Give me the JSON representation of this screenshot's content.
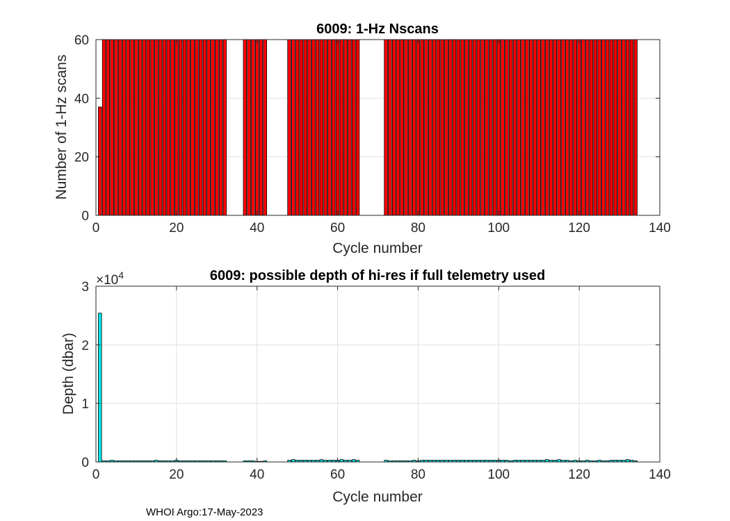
{
  "footer": "WHOI Argo:17-May-2023",
  "chart_data": [
    {
      "type": "bar",
      "title": "6009: 1-Hz Nscans",
      "xlabel": "Cycle number",
      "ylabel": "Number of 1-Hz scans",
      "xlim": [
        0,
        140
      ],
      "ylim": [
        0,
        60
      ],
      "xticks": [
        0,
        20,
        40,
        60,
        80,
        100,
        120,
        140
      ],
      "yticks": [
        0,
        20,
        40,
        60
      ],
      "grid": true,
      "bar_color": "#ff0000",
      "edge_color": "#000000",
      "x": [
        1,
        2,
        3,
        4,
        5,
        6,
        7,
        8,
        9,
        10,
        11,
        12,
        13,
        14,
        15,
        16,
        17,
        18,
        19,
        20,
        21,
        22,
        23,
        24,
        25,
        26,
        27,
        28,
        29,
        30,
        31,
        32,
        37,
        38,
        39,
        40,
        41,
        42,
        48,
        49,
        50,
        51,
        52,
        53,
        54,
        55,
        56,
        57,
        58,
        59,
        60,
        61,
        62,
        63,
        64,
        65,
        72,
        73,
        74,
        75,
        76,
        77,
        78,
        79,
        80,
        81,
        82,
        83,
        84,
        85,
        86,
        87,
        88,
        89,
        90,
        91,
        92,
        93,
        94,
        95,
        96,
        97,
        98,
        99,
        100,
        101,
        102,
        103,
        104,
        105,
        106,
        107,
        108,
        109,
        110,
        111,
        112,
        113,
        114,
        115,
        116,
        117,
        118,
        119,
        120,
        121,
        122,
        123,
        124,
        125,
        126,
        127,
        128,
        129,
        130,
        131,
        132,
        133,
        134
      ],
      "values": [
        37,
        60,
        60,
        60,
        60,
        60,
        60,
        60,
        60,
        60,
        60,
        60,
        60,
        60,
        60,
        60,
        60,
        60,
        60,
        60,
        60,
        60,
        60,
        60,
        60,
        60,
        60,
        60,
        60,
        60,
        60,
        60,
        60,
        60,
        60,
        60,
        60,
        60,
        60,
        60,
        60,
        60,
        60,
        60,
        60,
        60,
        60,
        60,
        60,
        60,
        60,
        60,
        60,
        60,
        60,
        60,
        60,
        60,
        60,
        60,
        60,
        60,
        60,
        60,
        60,
        60,
        60,
        60,
        60,
        60,
        60,
        60,
        60,
        60,
        60,
        60,
        60,
        60,
        60,
        60,
        60,
        60,
        60,
        60,
        60,
        60,
        60,
        60,
        60,
        60,
        60,
        60,
        60,
        60,
        60,
        60,
        60,
        60,
        60,
        60,
        60,
        60,
        60,
        60,
        60,
        60,
        60,
        60,
        60,
        60,
        60,
        60,
        60,
        60,
        60,
        60,
        60,
        60,
        60
      ]
    },
    {
      "type": "bar",
      "title": "6009: possible depth of hi-res if full telemetry used",
      "xlabel": "Cycle number",
      "ylabel": "Depth (dbar)",
      "exponent_label": "×10",
      "exponent_power": "4",
      "xlim": [
        0,
        140
      ],
      "ylim": [
        0,
        30000
      ],
      "xticks": [
        0,
        20,
        40,
        60,
        80,
        100,
        120,
        140
      ],
      "yticks": [
        0,
        10000,
        20000,
        30000
      ],
      "ytick_labels": [
        "0",
        "1",
        "2",
        "3"
      ],
      "grid": true,
      "bar_color": "#00e5e5",
      "edge_color": "#000000",
      "x": [
        1,
        2,
        3,
        4,
        5,
        6,
        7,
        8,
        9,
        10,
        11,
        12,
        13,
        14,
        15,
        16,
        17,
        18,
        19,
        20,
        21,
        22,
        23,
        24,
        25,
        26,
        27,
        28,
        29,
        30,
        31,
        32,
        37,
        38,
        39,
        40,
        41,
        42,
        48,
        49,
        50,
        51,
        52,
        53,
        54,
        55,
        56,
        57,
        58,
        59,
        60,
        61,
        62,
        63,
        64,
        65,
        72,
        73,
        74,
        75,
        76,
        77,
        78,
        79,
        80,
        81,
        82,
        83,
        84,
        85,
        86,
        87,
        88,
        89,
        90,
        91,
        92,
        93,
        94,
        95,
        96,
        97,
        98,
        99,
        100,
        101,
        102,
        103,
        104,
        105,
        106,
        107,
        108,
        109,
        110,
        111,
        112,
        113,
        114,
        115,
        116,
        117,
        118,
        119,
        120,
        121,
        122,
        123,
        124,
        125,
        126,
        127,
        128,
        129,
        130,
        131,
        132,
        133,
        134
      ],
      "values": [
        25400,
        200,
        200,
        300,
        200,
        200,
        200,
        200,
        200,
        200,
        200,
        200,
        200,
        200,
        300,
        200,
        200,
        200,
        200,
        300,
        200,
        200,
        200,
        200,
        200,
        200,
        200,
        200,
        200,
        200,
        200,
        200,
        200,
        200,
        200,
        100,
        100,
        200,
        300,
        400,
        300,
        300,
        300,
        300,
        300,
        300,
        400,
        300,
        300,
        300,
        300,
        400,
        300,
        300,
        400,
        300,
        300,
        200,
        200,
        200,
        200,
        200,
        200,
        300,
        200,
        300,
        300,
        300,
        300,
        300,
        300,
        300,
        300,
        300,
        300,
        300,
        300,
        300,
        300,
        300,
        300,
        300,
        300,
        300,
        300,
        300,
        300,
        200,
        300,
        300,
        300,
        300,
        300,
        300,
        300,
        300,
        400,
        300,
        300,
        400,
        300,
        300,
        200,
        300,
        200,
        200,
        300,
        200,
        200,
        300,
        200,
        200,
        300,
        300,
        300,
        300,
        400,
        300,
        200
      ]
    }
  ]
}
